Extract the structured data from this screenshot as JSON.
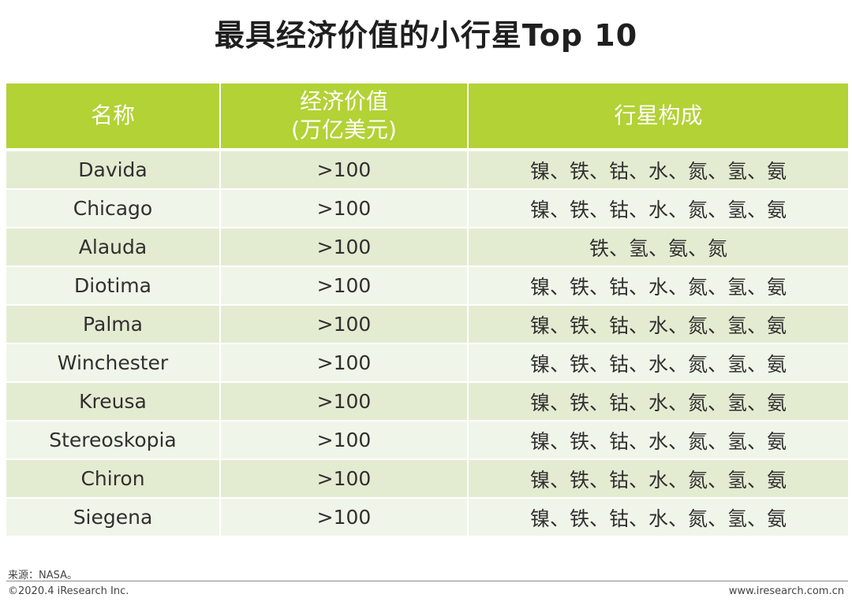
{
  "title": "最具经济价值的小行星Top 10",
  "table": {
    "headers": {
      "name": "名称",
      "value_line1": "经济价值",
      "value_line2": "(万亿美元)",
      "composition": "行星构成"
    },
    "rows": [
      {
        "name": "Davida",
        "value": ">100",
        "composition": "镍、铁、钴、水、氮、氢、氨"
      },
      {
        "name": "Chicago",
        "value": ">100",
        "composition": "镍、铁、钴、水、氮、氢、氨"
      },
      {
        "name": "Alauda",
        "value": ">100",
        "composition": "铁、氢、氨、氮"
      },
      {
        "name": "Diotima",
        "value": ">100",
        "composition": "镍、铁、钴、水、氮、氢、氨"
      },
      {
        "name": "Palma",
        "value": ">100",
        "composition": "镍、铁、钴、水、氮、氢、氨"
      },
      {
        "name": "Winchester",
        "value": ">100",
        "composition": "镍、铁、钴、水、氮、氢、氨"
      },
      {
        "name": "Kreusa",
        "value": ">100",
        "composition": "镍、铁、钴、水、氮、氢、氨"
      },
      {
        "name": "Stereoskopia",
        "value": ">100",
        "composition": "镍、铁、钴、水、氮、氢、氨"
      },
      {
        "name": "Chiron",
        "value": ">100",
        "composition": "镍、铁、钴、水、氮、氢、氨"
      },
      {
        "name": "Siegena",
        "value": ">100",
        "composition": "镍、铁、钴、水、氮、氢、氨"
      }
    ]
  },
  "footer": {
    "source": "来源：NASA。",
    "copyright": "©2020.4 iResearch Inc.",
    "website": "www.iresearch.com.cn"
  },
  "colors": {
    "header_bg": "#b2d235",
    "row_odd": "#e3ecd1",
    "row_even": "#f0f5e9"
  }
}
